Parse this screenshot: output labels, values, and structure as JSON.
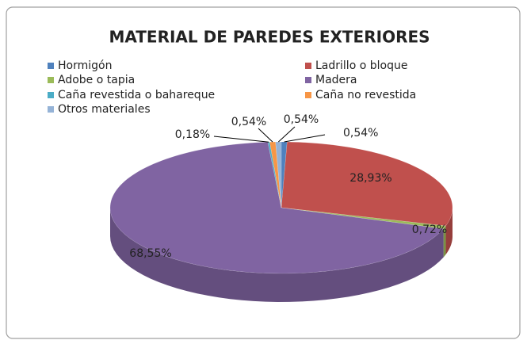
{
  "chart_data": {
    "type": "pie",
    "title": "MATERIAL DE PAREDES EXTERIORES",
    "categories": [
      "Hormigón",
      "Ladrillo o bloque",
      "Adobe o tapia",
      "Madera",
      "Caña revestida o bahareque",
      "Caña no revestida",
      "Otros materiales"
    ],
    "values": [
      0.54,
      28.93,
      0.72,
      68.55,
      0.18,
      0.54,
      0.54
    ],
    "value_labels": [
      "0,54%",
      "28,93%",
      "0,72%",
      "68,55%",
      "0,18%",
      "0,54%",
      "0,54%"
    ],
    "colors": [
      "#4f81bd",
      "#c0504d",
      "#9bbb59",
      "#8064a2",
      "#4bacc6",
      "#f79646",
      "#95b3d7"
    ]
  }
}
